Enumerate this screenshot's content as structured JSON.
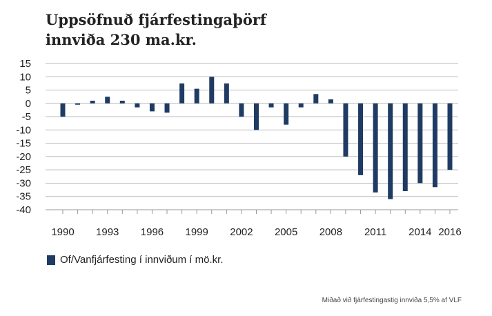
{
  "title_line1": "Uppsöfnuð fjárfestingaþörf",
  "title_line2": "innviða 230 ma.kr.",
  "legend_label": "Of/Vanfjárfesting í innviðum í mö.kr.",
  "footnote": "Miðað við fjárfestingastig innviða 5,5% af VLF",
  "colors": {
    "bar": "#1f3b63",
    "grid": "#b8b8b8"
  },
  "chart_data": {
    "type": "bar",
    "title": "Uppsöfnuð fjárfestingaþörf innviða 230 ma.kr.",
    "xlabel": "",
    "ylabel": "",
    "ylim": [
      -40,
      15
    ],
    "yticks": [
      15,
      10,
      5,
      0,
      -5,
      -10,
      -15,
      -20,
      -25,
      -30,
      -35,
      -40
    ],
    "xtick_labels": [
      "1990",
      "1993",
      "1996",
      "1999",
      "2002",
      "2005",
      "2008",
      "2011",
      "2014",
      "2016"
    ],
    "grid": true,
    "legend_position": "bottom-left",
    "categories": [
      1990,
      1991,
      1992,
      1993,
      1994,
      1995,
      1996,
      1997,
      1998,
      1999,
      2000,
      2001,
      2002,
      2003,
      2004,
      2005,
      2006,
      2007,
      2008,
      2009,
      2010,
      2011,
      2012,
      2013,
      2014,
      2015,
      2016
    ],
    "series": [
      {
        "name": "Of/Vanfjárfesting í innviðum í mö.kr.",
        "values": [
          -5,
          -0.5,
          1,
          2.5,
          1,
          -1.5,
          -3,
          -3.5,
          7.5,
          5.5,
          10,
          7.5,
          -5,
          -10,
          -1.5,
          -8,
          -1.5,
          3.5,
          1.5,
          -20,
          -27,
          -33.5,
          -36,
          -33,
          -30,
          -31.5,
          -25
        ]
      }
    ]
  }
}
